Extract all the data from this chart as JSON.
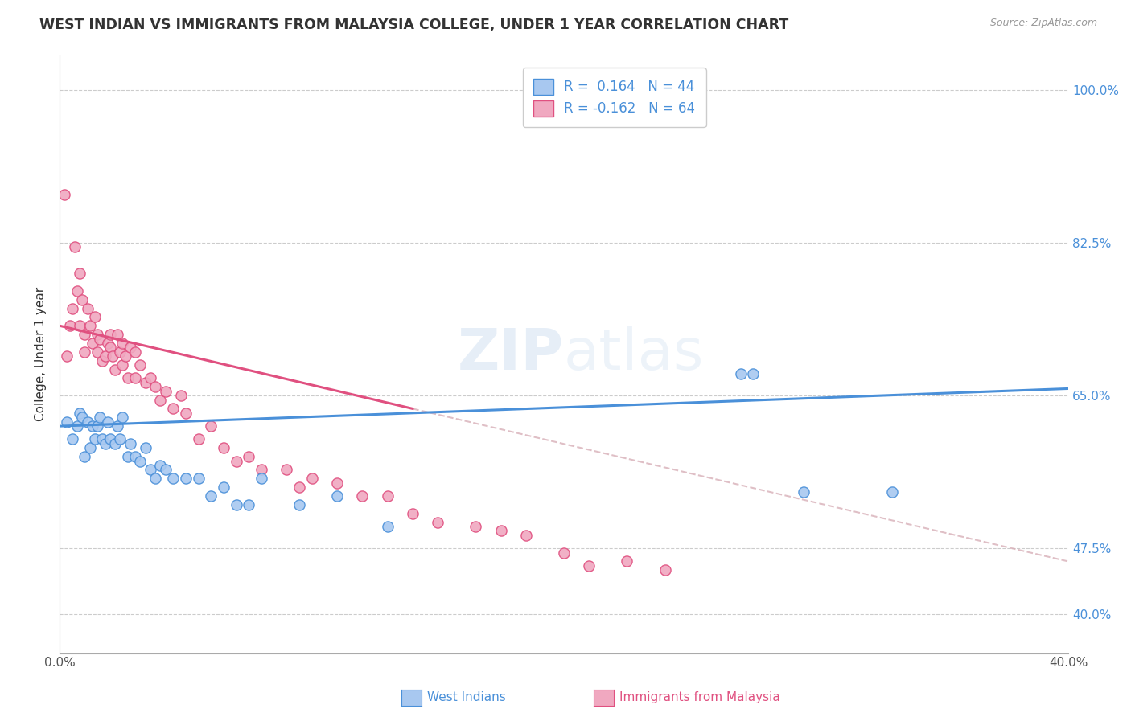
{
  "title": "WEST INDIAN VS IMMIGRANTS FROM MALAYSIA COLLEGE, UNDER 1 YEAR CORRELATION CHART",
  "source": "Source: ZipAtlas.com",
  "ylabel": "College, Under 1 year",
  "yticks": [
    "40.0%",
    "47.5%",
    "65.0%",
    "82.5%",
    "100.0%"
  ],
  "ytick_vals": [
    0.4,
    0.475,
    0.65,
    0.825,
    1.0
  ],
  "xlim": [
    0.0,
    0.4
  ],
  "ylim": [
    0.355,
    1.04
  ],
  "color_blue": "#a8c8f0",
  "color_pink": "#f0a8c0",
  "line_blue": "#4a90d9",
  "line_pink": "#e05080",
  "line_dashed_color": "#d8b0b8",
  "watermark_zip": "ZIP",
  "watermark_atlas": "atlas",
  "wi_line_x0": 0.0,
  "wi_line_y0": 0.615,
  "wi_line_x1": 0.4,
  "wi_line_y1": 0.658,
  "ma_line_x0": 0.0,
  "ma_line_y0": 0.73,
  "ma_line_x1": 0.14,
  "ma_line_y1": 0.635,
  "dash_line_x0": 0.14,
  "dash_line_y0": 0.635,
  "dash_line_x1": 0.4,
  "dash_line_y1": 0.46,
  "west_indians_x": [
    0.003,
    0.005,
    0.007,
    0.008,
    0.009,
    0.01,
    0.011,
    0.012,
    0.013,
    0.014,
    0.015,
    0.016,
    0.017,
    0.018,
    0.019,
    0.02,
    0.022,
    0.023,
    0.024,
    0.025,
    0.027,
    0.028,
    0.03,
    0.032,
    0.034,
    0.036,
    0.038,
    0.04,
    0.042,
    0.045,
    0.05,
    0.055,
    0.06,
    0.065,
    0.07,
    0.075,
    0.08,
    0.095,
    0.11,
    0.13,
    0.27,
    0.275,
    0.295,
    0.33
  ],
  "west_indians_y": [
    0.62,
    0.6,
    0.615,
    0.63,
    0.625,
    0.58,
    0.62,
    0.59,
    0.615,
    0.6,
    0.615,
    0.625,
    0.6,
    0.595,
    0.62,
    0.6,
    0.595,
    0.615,
    0.6,
    0.625,
    0.58,
    0.595,
    0.58,
    0.575,
    0.59,
    0.565,
    0.555,
    0.57,
    0.565,
    0.555,
    0.555,
    0.555,
    0.535,
    0.545,
    0.525,
    0.525,
    0.555,
    0.525,
    0.535,
    0.5,
    0.675,
    0.675,
    0.54,
    0.54
  ],
  "malaysia_x": [
    0.002,
    0.003,
    0.004,
    0.005,
    0.006,
    0.007,
    0.008,
    0.008,
    0.009,
    0.01,
    0.01,
    0.011,
    0.012,
    0.013,
    0.014,
    0.015,
    0.015,
    0.016,
    0.017,
    0.018,
    0.019,
    0.02,
    0.02,
    0.021,
    0.022,
    0.023,
    0.024,
    0.025,
    0.025,
    0.026,
    0.027,
    0.028,
    0.03,
    0.03,
    0.032,
    0.034,
    0.036,
    0.038,
    0.04,
    0.042,
    0.045,
    0.048,
    0.05,
    0.055,
    0.06,
    0.065,
    0.07,
    0.075,
    0.08,
    0.09,
    0.095,
    0.1,
    0.11,
    0.12,
    0.13,
    0.14,
    0.15,
    0.165,
    0.175,
    0.185,
    0.2,
    0.21,
    0.225,
    0.24
  ],
  "malaysia_y": [
    0.88,
    0.695,
    0.73,
    0.75,
    0.82,
    0.77,
    0.79,
    0.73,
    0.76,
    0.72,
    0.7,
    0.75,
    0.73,
    0.71,
    0.74,
    0.72,
    0.7,
    0.715,
    0.69,
    0.695,
    0.71,
    0.705,
    0.72,
    0.695,
    0.68,
    0.72,
    0.7,
    0.685,
    0.71,
    0.695,
    0.67,
    0.705,
    0.67,
    0.7,
    0.685,
    0.665,
    0.67,
    0.66,
    0.645,
    0.655,
    0.635,
    0.65,
    0.63,
    0.6,
    0.615,
    0.59,
    0.575,
    0.58,
    0.565,
    0.565,
    0.545,
    0.555,
    0.55,
    0.535,
    0.535,
    0.515,
    0.505,
    0.5,
    0.495,
    0.49,
    0.47,
    0.455,
    0.46,
    0.45
  ]
}
